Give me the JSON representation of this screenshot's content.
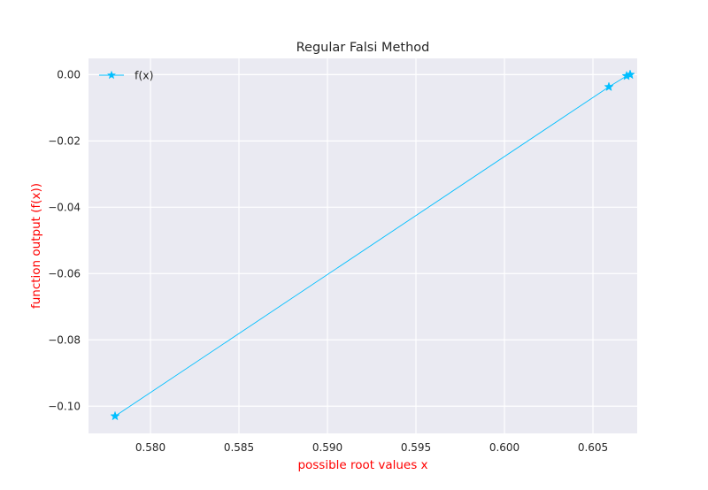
{
  "chart_data": {
    "type": "line",
    "title": "Regular Falsi Method",
    "xlabel": "possible root values x",
    "ylabel": "function output (f(x))",
    "label_color": "#ff0000",
    "xlim": [
      0.5765,
      0.6075
    ],
    "ylim": [
      -0.1082,
      0.0049
    ],
    "x_ticks": [
      {
        "value": 0.58,
        "label": "0.580"
      },
      {
        "value": 0.585,
        "label": "0.585"
      },
      {
        "value": 0.59,
        "label": "0.590"
      },
      {
        "value": 0.595,
        "label": "0.595"
      },
      {
        "value": 0.6,
        "label": "0.600"
      },
      {
        "value": 0.605,
        "label": "0.605"
      }
    ],
    "y_ticks": [
      {
        "value": 0.0,
        "label": "0.00"
      },
      {
        "value": -0.02,
        "label": "−0.02"
      },
      {
        "value": -0.04,
        "label": "−0.04"
      },
      {
        "value": -0.06,
        "label": "−0.06"
      },
      {
        "value": -0.08,
        "label": "−0.08"
      },
      {
        "value": -0.1,
        "label": "−0.10"
      }
    ],
    "grid": true,
    "legend_position": "upper-left",
    "series": [
      {
        "name": "f(x)",
        "color": "#00bfff",
        "marker": "star",
        "x": [
          0.578,
          0.6059,
          0.6069,
          0.6071,
          0.6071
        ],
        "y": [
          -0.103,
          -0.0037,
          -0.0004,
          -2e-05,
          0.0
        ]
      }
    ]
  }
}
